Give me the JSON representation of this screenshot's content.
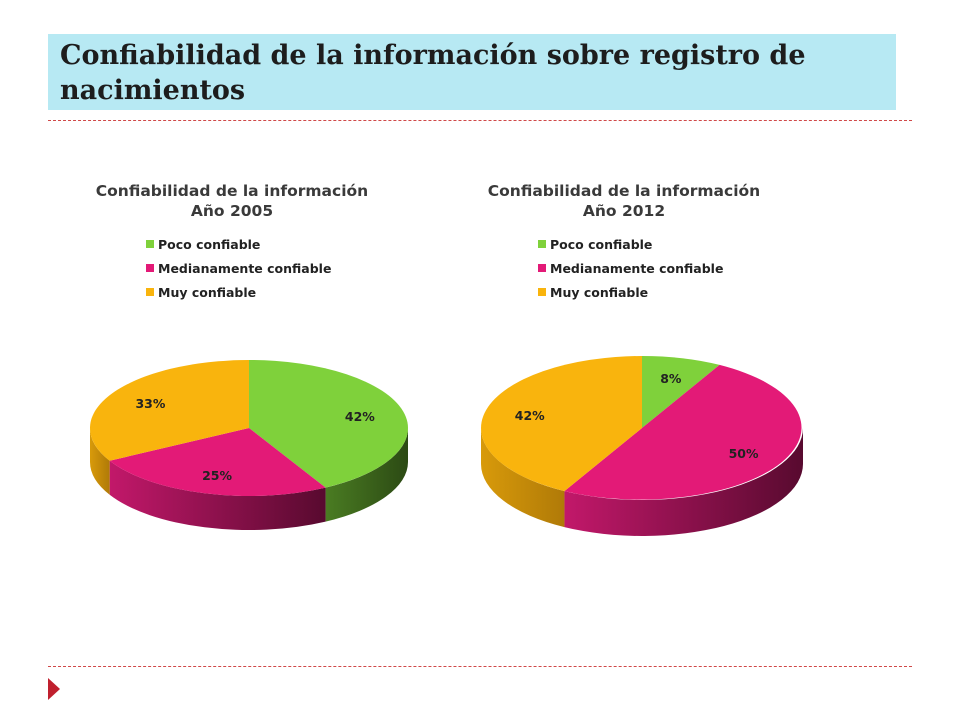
{
  "slide": {
    "title": "Confiabilidad de la información sobre registro de nacimientos"
  },
  "colors": {
    "poco": "#7fd13b",
    "medianamente": "#e31a77",
    "muy": "#f9b40d",
    "title_bg": "#b7e9f3",
    "rule": "#d04848",
    "bullet": "#c0202e"
  },
  "charts": [
    {
      "title_line1": "Confiabilidad  de la información",
      "title_line2": "Año 2005",
      "legend": [
        "Poco confiable",
        "Medianamente confiable",
        "Muy confiable"
      ],
      "labels": [
        "42%",
        "25%",
        "33%"
      ]
    },
    {
      "title_line1": "Confiabilidad  de la información",
      "title_line2": "Año 2012",
      "legend": [
        "Poco confiable",
        "Medianamente confiable",
        "Muy confiable"
      ],
      "labels": [
        "8%",
        "50%",
        "42%"
      ]
    }
  ],
  "chart_data": [
    {
      "type": "pie",
      "title": "Confiabilidad  de la información Año 2005",
      "categories": [
        "Poco confiable",
        "Medianamente confiable",
        "Muy confiable"
      ],
      "values": [
        42,
        25,
        33
      ],
      "unit": "%",
      "legend_position": "top",
      "style": "3d"
    },
    {
      "type": "pie",
      "title": "Confiabilidad  de la información Año 2012",
      "categories": [
        "Poco confiable",
        "Medianamente confiable",
        "Muy confiable"
      ],
      "values": [
        8,
        50,
        42
      ],
      "unit": "%",
      "legend_position": "top",
      "style": "3d"
    }
  ]
}
